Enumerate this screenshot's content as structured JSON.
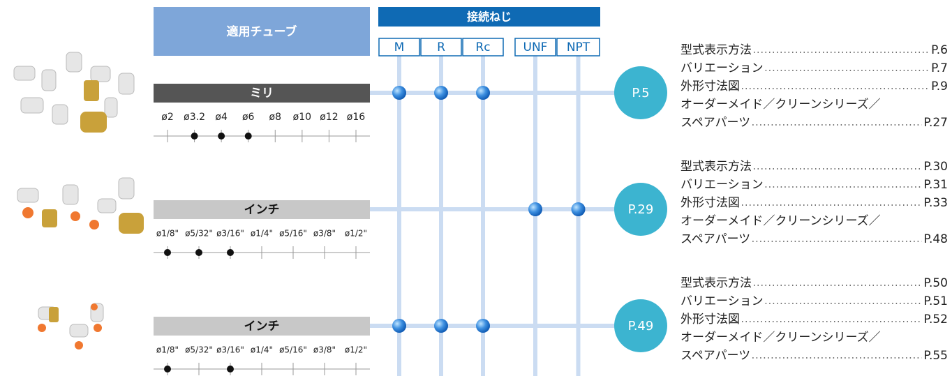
{
  "header": {
    "tube_title": "適用チューブ",
    "thread_title": "接続ねじ",
    "threads": [
      "M",
      "R",
      "Rc",
      "UNF",
      "NPT"
    ]
  },
  "rows": [
    {
      "label": "ミリ",
      "sizes": [
        "ø2",
        "ø3.2",
        "ø4",
        "ø6",
        "ø8",
        "ø10",
        "ø12",
        "ø16"
      ],
      "size_marked": [
        false,
        true,
        true,
        true,
        false,
        false,
        false,
        false
      ],
      "thread_marked": [
        true,
        true,
        true,
        false,
        false
      ],
      "page": "P.5",
      "index": [
        {
          "label": "型式表示方法",
          "page": "P.6"
        },
        {
          "label": "バリエーション",
          "page": "P.7"
        },
        {
          "label": "外形寸法図",
          "page": "P.9"
        },
        {
          "label": "オーダーメイド／クリーンシリーズ／"
        },
        {
          "label": "スペアパーツ",
          "page": "P.27"
        }
      ]
    },
    {
      "label": "インチ",
      "sizes": [
        "ø1/8\"",
        "ø5/32\"",
        "ø3/16\"",
        "ø1/4\"",
        "ø5/16\"",
        "ø3/8\"",
        "ø1/2\""
      ],
      "size_marked": [
        true,
        true,
        true,
        false,
        false,
        false,
        false
      ],
      "thread_marked": [
        false,
        false,
        false,
        true,
        true
      ],
      "page": "P.29",
      "index": [
        {
          "label": "型式表示方法",
          "page": "P.30"
        },
        {
          "label": "バリエーション",
          "page": "P.31"
        },
        {
          "label": "外形寸法図",
          "page": "P.33"
        },
        {
          "label": "オーダーメイド／クリーンシリーズ／"
        },
        {
          "label": "スペアパーツ",
          "page": "P.48"
        }
      ]
    },
    {
      "label": "インチ",
      "sizes": [
        "ø1/8\"",
        "ø5/32\"",
        "ø3/16\"",
        "ø1/4\"",
        "ø5/16\"",
        "ø3/8\"",
        "ø1/2\""
      ],
      "size_marked": [
        true,
        false,
        true,
        false,
        false,
        false,
        false
      ],
      "thread_marked": [
        true,
        true,
        true,
        false,
        false
      ],
      "page": "P.49",
      "index": [
        {
          "label": "型式表示方法",
          "page": "P.50"
        },
        {
          "label": "バリエーション",
          "page": "P.51"
        },
        {
          "label": "外形寸法図",
          "page": "P.52"
        },
        {
          "label": "オーダーメイド／クリーンシリーズ／"
        },
        {
          "label": "スペアパーツ",
          "page": "P.55"
        }
      ]
    }
  ]
}
